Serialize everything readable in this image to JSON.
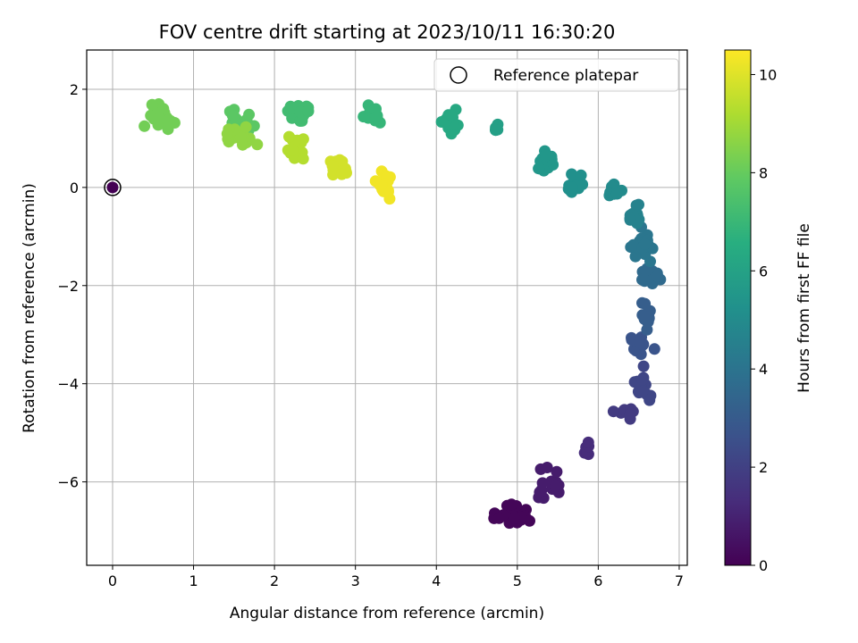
{
  "chart_data": {
    "type": "scatter",
    "title": "FOV centre drift starting at 2023/10/11 16:30:20",
    "xlabel": "Angular distance from reference (arcmin)",
    "ylabel": "Rotation from reference (arcmin)",
    "xlim": [
      -0.32,
      7.1
    ],
    "ylim": [
      -7.7,
      2.8
    ],
    "xticks": [
      0,
      1,
      2,
      3,
      4,
      5,
      6,
      7
    ],
    "yticks": [
      -6,
      -4,
      -2,
      0,
      2
    ],
    "grid": true,
    "legend": {
      "position": "top-right",
      "entries": [
        "Reference platepar"
      ]
    },
    "colorbar": {
      "label": "Hours from first FF file",
      "range": [
        0,
        10.5
      ],
      "ticks": [
        0,
        2,
        4,
        6,
        8,
        10
      ],
      "colormap": "viridis"
    },
    "reference_point": {
      "x": 0,
      "y": 0,
      "hours": 0
    },
    "clusters": [
      {
        "hours": 0.15,
        "cx": 4.95,
        "cy": -6.7,
        "sx": 0.25,
        "sy": 0.3,
        "n": 24
      },
      {
        "hours": 0.8,
        "cx": 5.4,
        "cy": -6.05,
        "sx": 0.2,
        "sy": 0.3,
        "n": 16
      },
      {
        "hours": 1.3,
        "cx": 5.85,
        "cy": -5.3,
        "sx": 0.1,
        "sy": 0.2,
        "n": 6
      },
      {
        "hours": 1.8,
        "cx": 6.3,
        "cy": -4.6,
        "sx": 0.2,
        "sy": 0.2,
        "n": 8
      },
      {
        "hours": 2.2,
        "cx": 6.55,
        "cy": -4.0,
        "sx": 0.1,
        "sy": 0.3,
        "n": 14
      },
      {
        "hours": 2.7,
        "cx": 6.5,
        "cy": -3.2,
        "sx": 0.15,
        "sy": 0.2,
        "n": 16
      },
      {
        "hours": 3.1,
        "cx": 6.6,
        "cy": -2.6,
        "sx": 0.1,
        "sy": 0.25,
        "n": 14
      },
      {
        "hours": 3.6,
        "cx": 6.65,
        "cy": -1.8,
        "sx": 0.12,
        "sy": 0.25,
        "n": 18
      },
      {
        "hours": 4.1,
        "cx": 6.55,
        "cy": -1.2,
        "sx": 0.15,
        "sy": 0.3,
        "n": 20
      },
      {
        "hours": 4.6,
        "cx": 6.45,
        "cy": -0.55,
        "sx": 0.1,
        "sy": 0.2,
        "n": 14
      },
      {
        "hours": 5.0,
        "cx": 6.2,
        "cy": -0.1,
        "sx": 0.12,
        "sy": 0.15,
        "n": 10
      },
      {
        "hours": 5.2,
        "cx": 5.7,
        "cy": 0.1,
        "sx": 0.12,
        "sy": 0.25,
        "n": 14
      },
      {
        "hours": 5.5,
        "cx": 5.35,
        "cy": 0.5,
        "sx": 0.15,
        "sy": 0.2,
        "n": 16
      },
      {
        "hours": 5.9,
        "cx": 4.75,
        "cy": 1.15,
        "sx": 0.05,
        "sy": 0.15,
        "n": 5
      },
      {
        "hours": 6.3,
        "cx": 4.15,
        "cy": 1.3,
        "sx": 0.12,
        "sy": 0.25,
        "n": 20
      },
      {
        "hours": 6.9,
        "cx": 3.2,
        "cy": 1.45,
        "sx": 0.12,
        "sy": 0.25,
        "n": 16
      },
      {
        "hours": 7.2,
        "cx": 2.3,
        "cy": 1.55,
        "sx": 0.18,
        "sy": 0.22,
        "n": 22
      },
      {
        "hours": 7.8,
        "cx": 1.55,
        "cy": 1.35,
        "sx": 0.2,
        "sy": 0.28,
        "n": 24
      },
      {
        "hours": 8.2,
        "cx": 0.55,
        "cy": 1.45,
        "sx": 0.18,
        "sy": 0.22,
        "n": 30
      },
      {
        "hours": 8.7,
        "cx": 1.6,
        "cy": 1.05,
        "sx": 0.2,
        "sy": 0.18,
        "n": 22
      },
      {
        "hours": 9.3,
        "cx": 2.25,
        "cy": 0.85,
        "sx": 0.12,
        "sy": 0.25,
        "n": 16
      },
      {
        "hours": 9.8,
        "cx": 2.8,
        "cy": 0.45,
        "sx": 0.12,
        "sy": 0.22,
        "n": 18
      },
      {
        "hours": 10.3,
        "cx": 3.35,
        "cy": 0.1,
        "sx": 0.1,
        "sy": 0.3,
        "n": 24
      }
    ]
  }
}
